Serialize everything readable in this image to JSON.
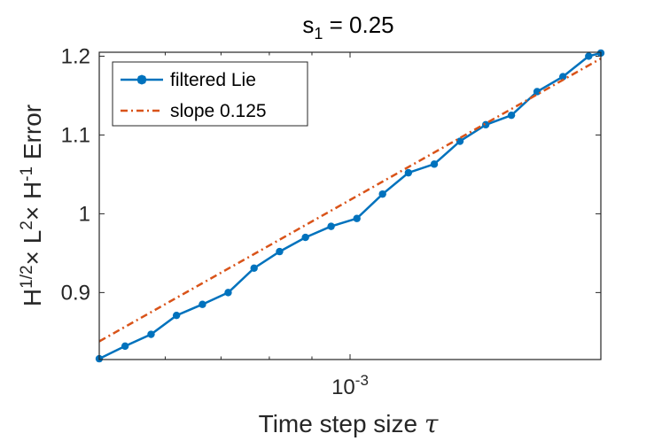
{
  "chart_data": {
    "type": "line",
    "title_main": "s",
    "title_sub": "1",
    "title_rest": " = 0.25",
    "xlabel_main": "Time step size ",
    "xlabel_symbol": "τ",
    "ylabel": [
      {
        "text": "H",
        "sup": "1/2"
      },
      {
        "text": "× L",
        "sup": "2"
      },
      {
        "text": "× H",
        "sup": "-1"
      },
      {
        "text": " Error",
        "sup": ""
      }
    ],
    "x_scale": "log",
    "xlim": [
      0.0005,
      0.002
    ],
    "ylim": [
      0.815,
      1.205
    ],
    "x_ticks": [
      0.001
    ],
    "x_tick_labels": [
      {
        "base": "10",
        "exp": "-3"
      }
    ],
    "y_ticks": [
      0.9,
      1.0,
      1.1,
      1.2
    ],
    "y_tick_labels": [
      "0.9",
      "1",
      "1.1",
      "1.2"
    ],
    "legend_position": "top-left",
    "series": [
      {
        "name": "filtered Lie",
        "color": "#0072BD",
        "style": "solid-with-markers",
        "x": [
          0.0005,
          0.000537,
          0.000577,
          0.000619,
          0.000665,
          0.000714,
          0.000767,
          0.000823,
          0.000884,
          0.000949,
          0.001019,
          0.001094,
          0.001175,
          0.001262,
          0.001355,
          0.001455,
          0.001562,
          0.001677,
          0.001801,
          0.001934,
          0.002
        ],
        "values": [
          0.816,
          0.832,
          0.847,
          0.871,
          0.885,
          0.9,
          0.931,
          0.952,
          0.97,
          0.984,
          0.994,
          1.025,
          1.052,
          1.063,
          1.092,
          1.113,
          1.125,
          1.155,
          1.174,
          1.2,
          1.204
        ]
      },
      {
        "name": "slope 0.125",
        "color": "#D95319",
        "style": "dash-dot",
        "x": [
          0.0005,
          0.002
        ],
        "values": [
          0.838,
          1.197
        ]
      }
    ]
  }
}
